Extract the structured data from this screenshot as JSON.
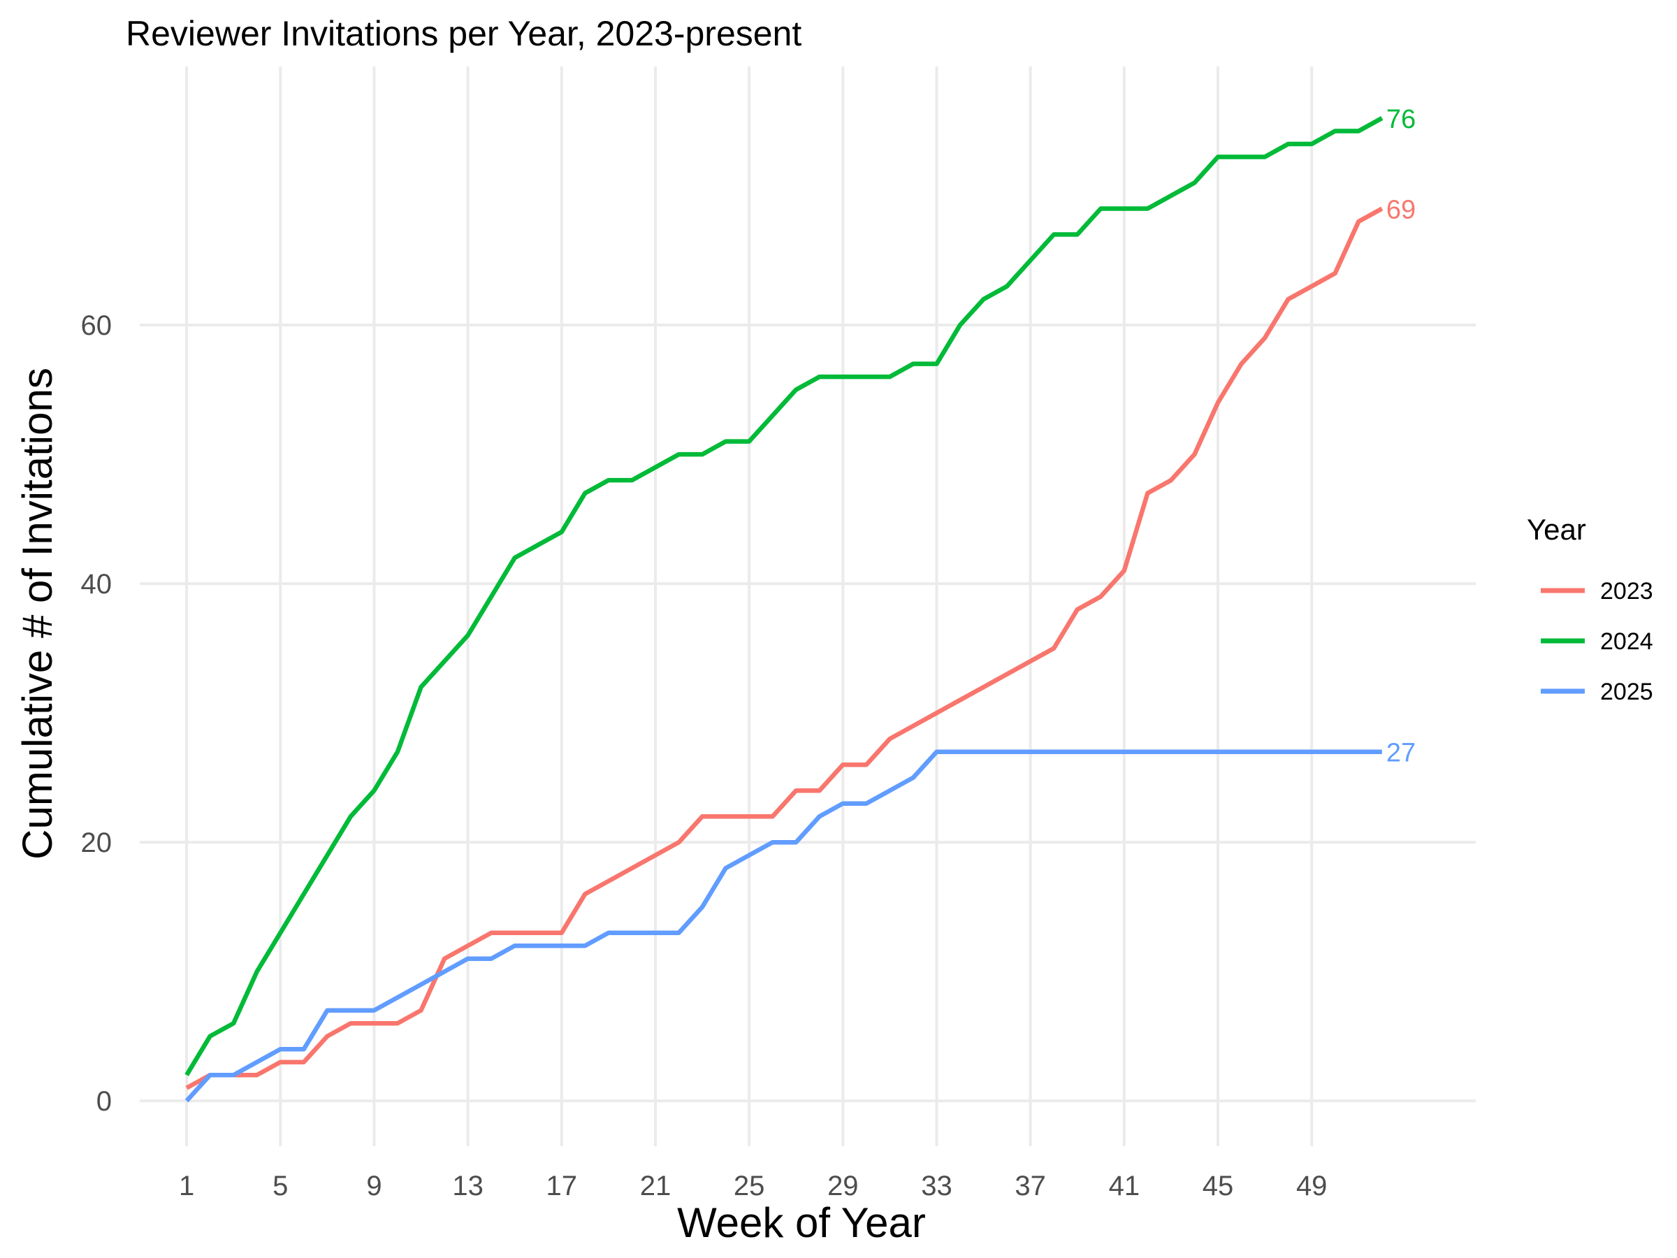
{
  "chart_data": {
    "type": "line",
    "title": "Reviewer Invitations per Year, 2023-present",
    "xlabel": "Week of Year",
    "ylabel": "Cumulative # of Invitations",
    "xlim": [
      -1,
      56
    ],
    "ylim": [
      -3.5,
      80
    ],
    "x_ticks": [
      1,
      5,
      9,
      13,
      17,
      21,
      25,
      29,
      33,
      37,
      41,
      45,
      49
    ],
    "y_ticks": [
      0,
      20,
      40,
      60
    ],
    "grid": true,
    "legend": {
      "title": "Year",
      "position": "right"
    },
    "series": [
      {
        "name": "2023",
        "color": "#F8766D",
        "end_label": "69",
        "x": [
          1,
          2,
          3,
          4,
          5,
          6,
          7,
          8,
          9,
          10,
          11,
          12,
          13,
          14,
          15,
          16,
          17,
          18,
          19,
          20,
          21,
          22,
          23,
          24,
          25,
          26,
          27,
          28,
          29,
          30,
          31,
          32,
          33,
          34,
          35,
          36,
          37,
          38,
          39,
          40,
          41,
          42,
          43,
          44,
          45,
          46,
          47,
          48,
          49,
          50,
          51,
          52
        ],
        "values": [
          1,
          2,
          2,
          2,
          3,
          3,
          5,
          6,
          6,
          6,
          7,
          11,
          12,
          13,
          13,
          13,
          13,
          16,
          17,
          18,
          19,
          20,
          22,
          22,
          22,
          22,
          24,
          24,
          26,
          26,
          28,
          29,
          30,
          31,
          32,
          33,
          34,
          35,
          38,
          39,
          41,
          47,
          48,
          50,
          54,
          57,
          59,
          62,
          63,
          64,
          68,
          69
        ]
      },
      {
        "name": "2024",
        "color": "#00BA38",
        "end_label": "76",
        "x": [
          1,
          2,
          3,
          4,
          5,
          6,
          7,
          8,
          9,
          10,
          11,
          12,
          13,
          14,
          15,
          16,
          17,
          18,
          19,
          20,
          21,
          22,
          23,
          24,
          25,
          26,
          27,
          28,
          29,
          30,
          31,
          32,
          33,
          34,
          35,
          36,
          37,
          38,
          39,
          40,
          41,
          42,
          43,
          44,
          45,
          46,
          47,
          48,
          49,
          50,
          51,
          52
        ],
        "values": [
          2,
          5,
          6,
          10,
          13,
          16,
          19,
          22,
          24,
          27,
          32,
          34,
          36,
          39,
          42,
          43,
          44,
          47,
          48,
          48,
          49,
          50,
          50,
          51,
          51,
          53,
          55,
          56,
          56,
          56,
          56,
          57,
          57,
          60,
          62,
          63,
          65,
          67,
          67,
          69,
          69,
          69,
          70,
          71,
          73,
          73,
          73,
          74,
          74,
          75,
          75,
          76
        ]
      },
      {
        "name": "2025",
        "color": "#619CFF",
        "end_label": "27",
        "x": [
          1,
          2,
          3,
          4,
          5,
          6,
          7,
          8,
          9,
          10,
          11,
          12,
          13,
          14,
          15,
          16,
          17,
          18,
          19,
          20,
          21,
          22,
          23,
          24,
          25,
          26,
          27,
          28,
          29,
          30,
          31,
          32,
          33,
          34,
          35,
          36,
          37,
          38,
          39,
          40,
          41,
          42,
          43,
          44,
          45,
          46,
          47,
          48,
          49,
          50,
          51,
          52
        ],
        "values": [
          0,
          2,
          2,
          3,
          4,
          4,
          7,
          7,
          7,
          8,
          9,
          10,
          11,
          11,
          12,
          12,
          12,
          12,
          13,
          13,
          13,
          13,
          15,
          18,
          19,
          20,
          20,
          22,
          23,
          23,
          24,
          25,
          27,
          27,
          27,
          27,
          27,
          27,
          27,
          27,
          27,
          27,
          27,
          27,
          27,
          27,
          27,
          27,
          27,
          27,
          27,
          27
        ]
      }
    ]
  }
}
